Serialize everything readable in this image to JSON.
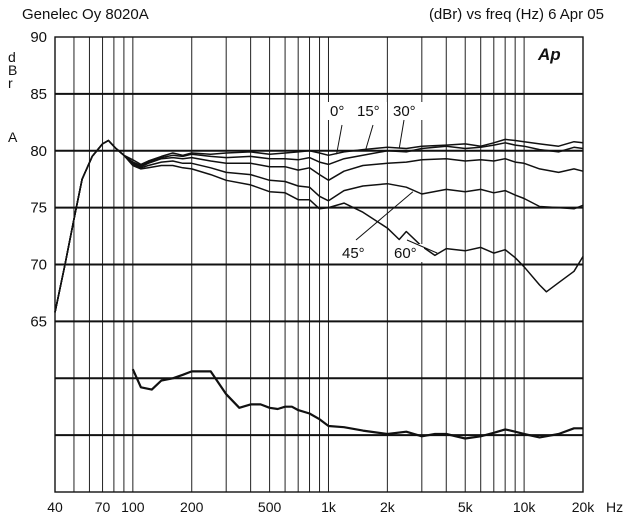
{
  "header": {
    "left_title": "Genelec Oy 8020A",
    "right_title": "(dBr) vs freq (Hz) 6 Apr 05",
    "logo": "Ap"
  },
  "axes": {
    "y_unit_letters": [
      "d",
      "B",
      "r",
      "A"
    ],
    "x_unit": "Hz"
  },
  "chart_data": {
    "type": "line",
    "xscale": "log",
    "xlim": [
      40,
      20000
    ],
    "ylim": [
      50,
      90
    ],
    "grid": true,
    "ylabel": "dBr A",
    "xlabel": "Hz",
    "title": "Genelec Oy 8020A",
    "x_tick_values": [
      40,
      70,
      100,
      200,
      500,
      1000,
      2000,
      5000,
      10000,
      20000
    ],
    "x_tick_labels": [
      "40",
      "70",
      "100",
      "200",
      "500",
      "1k",
      "2k",
      "5k",
      "10k",
      "20k"
    ],
    "y_tick_values": [
      65,
      70,
      75,
      80,
      85,
      90
    ],
    "y_tick_labels": [
      "65",
      "70",
      "75",
      "80",
      "85",
      "90"
    ],
    "annotations": [
      "0°",
      "15°",
      "30°",
      "45°",
      "60°"
    ],
    "series": [
      {
        "name": "0°",
        "points": [
          [
            40,
            65.8
          ],
          [
            45,
            70
          ],
          [
            50,
            74
          ],
          [
            55,
            77.5
          ],
          [
            62,
            79.5
          ],
          [
            70,
            80.6
          ],
          [
            75,
            80.9
          ],
          [
            82,
            80.2
          ],
          [
            90,
            79.6
          ],
          [
            100,
            79.2
          ],
          [
            110,
            78.8
          ],
          [
            120,
            79.1
          ],
          [
            140,
            79.5
          ],
          [
            160,
            79.8
          ],
          [
            180,
            79.6
          ],
          [
            200,
            79.8
          ],
          [
            250,
            79.7
          ],
          [
            300,
            79.8
          ],
          [
            400,
            79.9
          ],
          [
            500,
            79.7
          ],
          [
            600,
            79.8
          ],
          [
            700,
            79.9
          ],
          [
            800,
            80
          ],
          [
            900,
            79.8
          ],
          [
            1000,
            79.6
          ],
          [
            1200,
            79.9
          ],
          [
            1500,
            80.1
          ],
          [
            2000,
            80.3
          ],
          [
            2500,
            80.2
          ],
          [
            3000,
            80.4
          ],
          [
            4000,
            80.5
          ],
          [
            5000,
            80.6
          ],
          [
            6000,
            80.4
          ],
          [
            7000,
            80.7
          ],
          [
            8000,
            81
          ],
          [
            9000,
            80.9
          ],
          [
            10000,
            80.8
          ],
          [
            12000,
            80.6
          ],
          [
            15000,
            80.4
          ],
          [
            18000,
            80.8
          ],
          [
            20000,
            80.7
          ]
        ]
      },
      {
        "name": "15°",
        "points": [
          [
            40,
            65.8
          ],
          [
            45,
            70
          ],
          [
            50,
            74
          ],
          [
            55,
            77.5
          ],
          [
            62,
            79.5
          ],
          [
            70,
            80.6
          ],
          [
            75,
            80.9
          ],
          [
            82,
            80.2
          ],
          [
            90,
            79.6
          ],
          [
            100,
            79
          ],
          [
            110,
            78.7
          ],
          [
            120,
            79
          ],
          [
            140,
            79.4
          ],
          [
            160,
            79.6
          ],
          [
            180,
            79.5
          ],
          [
            200,
            79.7
          ],
          [
            250,
            79.5
          ],
          [
            300,
            79.4
          ],
          [
            400,
            79.5
          ],
          [
            500,
            79.3
          ],
          [
            600,
            79.3
          ],
          [
            700,
            79.2
          ],
          [
            800,
            79.4
          ],
          [
            900,
            79
          ],
          [
            1000,
            78.8
          ],
          [
            1200,
            79.3
          ],
          [
            1500,
            79.6
          ],
          [
            2000,
            80
          ],
          [
            2500,
            79.9
          ],
          [
            3000,
            80.2
          ],
          [
            4000,
            80.4
          ],
          [
            5000,
            80.2
          ],
          [
            6000,
            80.3
          ],
          [
            7000,
            80.5
          ],
          [
            8000,
            80.7
          ],
          [
            9000,
            80.5
          ],
          [
            10000,
            80.4
          ],
          [
            12000,
            80.1
          ],
          [
            15000,
            79.9
          ],
          [
            18000,
            80.3
          ],
          [
            20000,
            80.2
          ]
        ]
      },
      {
        "name": "30°",
        "points": [
          [
            40,
            65.8
          ],
          [
            45,
            70
          ],
          [
            50,
            74
          ],
          [
            55,
            77.5
          ],
          [
            62,
            79.5
          ],
          [
            70,
            80.6
          ],
          [
            75,
            80.9
          ],
          [
            82,
            80.2
          ],
          [
            90,
            79.6
          ],
          [
            100,
            78.9
          ],
          [
            110,
            78.6
          ],
          [
            120,
            78.9
          ],
          [
            140,
            79.3
          ],
          [
            160,
            79.4
          ],
          [
            180,
            79.3
          ],
          [
            200,
            79.4
          ],
          [
            250,
            79.1
          ],
          [
            300,
            78.9
          ],
          [
            400,
            78.9
          ],
          [
            500,
            78.6
          ],
          [
            600,
            78.6
          ],
          [
            700,
            78.3
          ],
          [
            800,
            78.5
          ],
          [
            900,
            77.9
          ],
          [
            1000,
            77.4
          ],
          [
            1200,
            78.2
          ],
          [
            1500,
            78.7
          ],
          [
            2000,
            78.9
          ],
          [
            2500,
            79
          ],
          [
            3000,
            79.2
          ],
          [
            4000,
            79.3
          ],
          [
            5000,
            79.1
          ],
          [
            6000,
            79.2
          ],
          [
            7000,
            79.1
          ],
          [
            8000,
            79.3
          ],
          [
            9000,
            79
          ],
          [
            10000,
            78.9
          ],
          [
            12000,
            78.4
          ],
          [
            15000,
            78.1
          ],
          [
            18000,
            78.4
          ],
          [
            20000,
            78.2
          ]
        ]
      },
      {
        "name": "45°",
        "points": [
          [
            40,
            65.8
          ],
          [
            45,
            70
          ],
          [
            50,
            74
          ],
          [
            55,
            77.5
          ],
          [
            62,
            79.5
          ],
          [
            70,
            80.6
          ],
          [
            75,
            80.9
          ],
          [
            82,
            80.2
          ],
          [
            90,
            79.6
          ],
          [
            100,
            78.8
          ],
          [
            110,
            78.5
          ],
          [
            120,
            78.7
          ],
          [
            140,
            79
          ],
          [
            160,
            79.1
          ],
          [
            180,
            78.9
          ],
          [
            200,
            78.9
          ],
          [
            250,
            78.5
          ],
          [
            300,
            78.1
          ],
          [
            400,
            77.9
          ],
          [
            500,
            77.4
          ],
          [
            600,
            77.3
          ],
          [
            700,
            76.9
          ],
          [
            800,
            76.8
          ],
          [
            900,
            76
          ],
          [
            1000,
            75.6
          ],
          [
            1200,
            76.5
          ],
          [
            1500,
            76.9
          ],
          [
            2000,
            77.1
          ],
          [
            2500,
            76.8
          ],
          [
            3000,
            76.2
          ],
          [
            4000,
            76.6
          ],
          [
            5000,
            76.4
          ],
          [
            6000,
            76.6
          ],
          [
            7000,
            76.3
          ],
          [
            8000,
            76.5
          ],
          [
            9000,
            76.1
          ],
          [
            10000,
            75.8
          ],
          [
            12000,
            75.1
          ],
          [
            15000,
            75
          ],
          [
            18000,
            74.9
          ],
          [
            20000,
            75.2
          ]
        ]
      },
      {
        "name": "60°",
        "points": [
          [
            40,
            65.8
          ],
          [
            45,
            70
          ],
          [
            50,
            74
          ],
          [
            55,
            77.5
          ],
          [
            62,
            79.5
          ],
          [
            70,
            80.6
          ],
          [
            75,
            80.9
          ],
          [
            82,
            80.2
          ],
          [
            90,
            79.6
          ],
          [
            100,
            78.7
          ],
          [
            110,
            78.4
          ],
          [
            120,
            78.5
          ],
          [
            140,
            78.7
          ],
          [
            160,
            78.7
          ],
          [
            180,
            78.5
          ],
          [
            200,
            78.4
          ],
          [
            250,
            77.9
          ],
          [
            300,
            77.4
          ],
          [
            400,
            77
          ],
          [
            500,
            76.4
          ],
          [
            600,
            76.3
          ],
          [
            700,
            75.7
          ],
          [
            800,
            75.7
          ],
          [
            900,
            74.9
          ],
          [
            1000,
            75
          ],
          [
            1200,
            75.4
          ],
          [
            1500,
            74.6
          ],
          [
            2000,
            73.2
          ],
          [
            2300,
            72.2
          ],
          [
            2500,
            72.9
          ],
          [
            3000,
            71.6
          ],
          [
            3500,
            70.8
          ],
          [
            4000,
            71.4
          ],
          [
            5000,
            71.2
          ],
          [
            6000,
            71.5
          ],
          [
            7000,
            71
          ],
          [
            8000,
            71.3
          ],
          [
            9000,
            70.6
          ],
          [
            10000,
            69.8
          ],
          [
            12000,
            68.2
          ],
          [
            13000,
            67.6
          ],
          [
            15000,
            68.4
          ],
          [
            18000,
            69.4
          ],
          [
            20000,
            70.7
          ]
        ]
      },
      {
        "name": "",
        "points": [
          [
            100,
            60.8
          ],
          [
            110,
            59.2
          ],
          [
            125,
            59
          ],
          [
            140,
            59.8
          ],
          [
            160,
            60
          ],
          [
            180,
            60.3
          ],
          [
            200,
            60.6
          ],
          [
            250,
            60.6
          ],
          [
            300,
            58.6
          ],
          [
            350,
            57.4
          ],
          [
            400,
            57.7
          ],
          [
            450,
            57.7
          ],
          [
            500,
            57.4
          ],
          [
            550,
            57.3
          ],
          [
            600,
            57.5
          ],
          [
            650,
            57.5
          ],
          [
            700,
            57.2
          ],
          [
            800,
            56.9
          ],
          [
            900,
            56.4
          ],
          [
            1000,
            55.8
          ],
          [
            1200,
            55.7
          ],
          [
            1500,
            55.4
          ],
          [
            2000,
            55.1
          ],
          [
            2500,
            55.3
          ],
          [
            3000,
            54.9
          ],
          [
            3500,
            55.1
          ],
          [
            4000,
            55.1
          ],
          [
            5000,
            54.7
          ],
          [
            6000,
            54.9
          ],
          [
            7000,
            55.2
          ],
          [
            8000,
            55.5
          ],
          [
            9000,
            55.3
          ],
          [
            10000,
            55.1
          ],
          [
            12000,
            54.8
          ],
          [
            15000,
            55.1
          ],
          [
            18000,
            55.6
          ],
          [
            20000,
            55.6
          ]
        ]
      }
    ]
  }
}
